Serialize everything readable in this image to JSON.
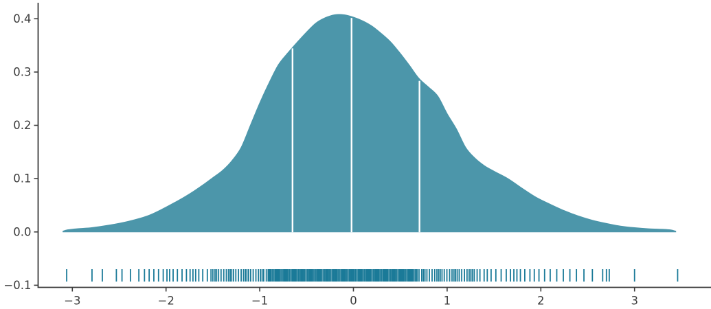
{
  "figure": {
    "description": "KDE density curve with quartile lines and rug plot of observations",
    "background": "#ffffff"
  },
  "colors": {
    "fill": "#4c96aa",
    "rug": "#1b7a98",
    "axis": "#3b3b3b",
    "tick_label": "#3b3b3b",
    "quartile_line": "#ffffff"
  },
  "chart_data": {
    "type": "area",
    "subtype": "kde-density-with-rug",
    "title": "",
    "xlabel": "",
    "ylabel": "",
    "grid": false,
    "legend": null,
    "xlim": [
      -3.365,
      3.816
    ],
    "ylim": [
      -0.104,
      0.43
    ],
    "xticks": [
      {
        "v": -3,
        "label": "−3"
      },
      {
        "v": -2,
        "label": "−2"
      },
      {
        "v": -1,
        "label": "−1"
      },
      {
        "v": 0,
        "label": "0"
      },
      {
        "v": 1,
        "label": "1"
      },
      {
        "v": 2,
        "label": "2"
      },
      {
        "v": 3,
        "label": "3"
      }
    ],
    "yticks": [
      {
        "v": 0.4,
        "label": "0.4"
      },
      {
        "v": 0.3,
        "label": "0.3"
      },
      {
        "v": 0.2,
        "label": "0.2"
      },
      {
        "v": 0.1,
        "label": "0.1"
      },
      {
        "v": 0.0,
        "label": "0.0"
      },
      {
        "v": -0.1,
        "label": "−0.1"
      }
    ],
    "kde": [
      [
        -3.1,
        0.0015
      ],
      [
        -3.05,
        0.004
      ],
      [
        -2.95,
        0.006
      ],
      [
        -2.8,
        0.008
      ],
      [
        -2.6,
        0.013
      ],
      [
        -2.4,
        0.02
      ],
      [
        -2.2,
        0.03
      ],
      [
        -2.05,
        0.042
      ],
      [
        -1.9,
        0.056
      ],
      [
        -1.8,
        0.066
      ],
      [
        -1.7,
        0.077
      ],
      [
        -1.6,
        0.089
      ],
      [
        -1.5,
        0.102
      ],
      [
        -1.4,
        0.115
      ],
      [
        -1.3,
        0.133
      ],
      [
        -1.2,
        0.158
      ],
      [
        -1.1,
        0.2
      ],
      [
        -1.0,
        0.242
      ],
      [
        -0.9,
        0.28
      ],
      [
        -0.8,
        0.314
      ],
      [
        -0.7,
        0.336
      ],
      [
        -0.6,
        0.356
      ],
      [
        -0.5,
        0.375
      ],
      [
        -0.4,
        0.392
      ],
      [
        -0.3,
        0.402
      ],
      [
        -0.2,
        0.4075
      ],
      [
        -0.1,
        0.4075
      ],
      [
        0.0,
        0.403
      ],
      [
        0.1,
        0.396
      ],
      [
        0.2,
        0.386
      ],
      [
        0.3,
        0.372
      ],
      [
        0.4,
        0.356
      ],
      [
        0.5,
        0.335
      ],
      [
        0.6,
        0.312
      ],
      [
        0.7,
        0.288
      ],
      [
        0.8,
        0.272
      ],
      [
        0.9,
        0.255
      ],
      [
        1.0,
        0.222
      ],
      [
        1.1,
        0.193
      ],
      [
        1.2,
        0.158
      ],
      [
        1.3,
        0.138
      ],
      [
        1.4,
        0.124
      ],
      [
        1.5,
        0.114
      ],
      [
        1.65,
        0.1
      ],
      [
        1.8,
        0.082
      ],
      [
        1.95,
        0.065
      ],
      [
        2.1,
        0.052
      ],
      [
        2.25,
        0.04
      ],
      [
        2.4,
        0.03
      ],
      [
        2.55,
        0.022
      ],
      [
        2.7,
        0.016
      ],
      [
        2.85,
        0.011
      ],
      [
        3.0,
        0.008
      ],
      [
        3.15,
        0.006
      ],
      [
        3.3,
        0.005
      ],
      [
        3.38,
        0.004
      ],
      [
        3.44,
        0.0015
      ]
    ],
    "quartiles": [
      {
        "x": -0.65,
        "density": 0.347
      },
      {
        "x": -0.02,
        "density": 0.404
      },
      {
        "x": 0.705,
        "density": 0.286
      }
    ],
    "rug": {
      "segments": [
        {
          "from": -1.99,
          "to": -1.52,
          "count": 13
        },
        {
          "from": -1.5,
          "to": -0.93,
          "count": 26
        },
        {
          "from": -0.91,
          "to": 0.68,
          "count": 134
        },
        {
          "from": 0.7,
          "to": 1.32,
          "count": 28
        },
        {
          "from": 1.35,
          "to": 1.93,
          "count": 14
        }
      ],
      "points": [
        -3.06,
        -2.79,
        -2.68,
        -2.53,
        -2.47,
        -2.38,
        -2.29,
        -2.23,
        -2.18,
        -2.13,
        -2.08,
        -2.03,
        1.98,
        2.04,
        2.1,
        2.17,
        2.24,
        2.31,
        2.38,
        2.46,
        2.55,
        2.66,
        2.7,
        2.73,
        3.0,
        3.46
      ]
    }
  }
}
